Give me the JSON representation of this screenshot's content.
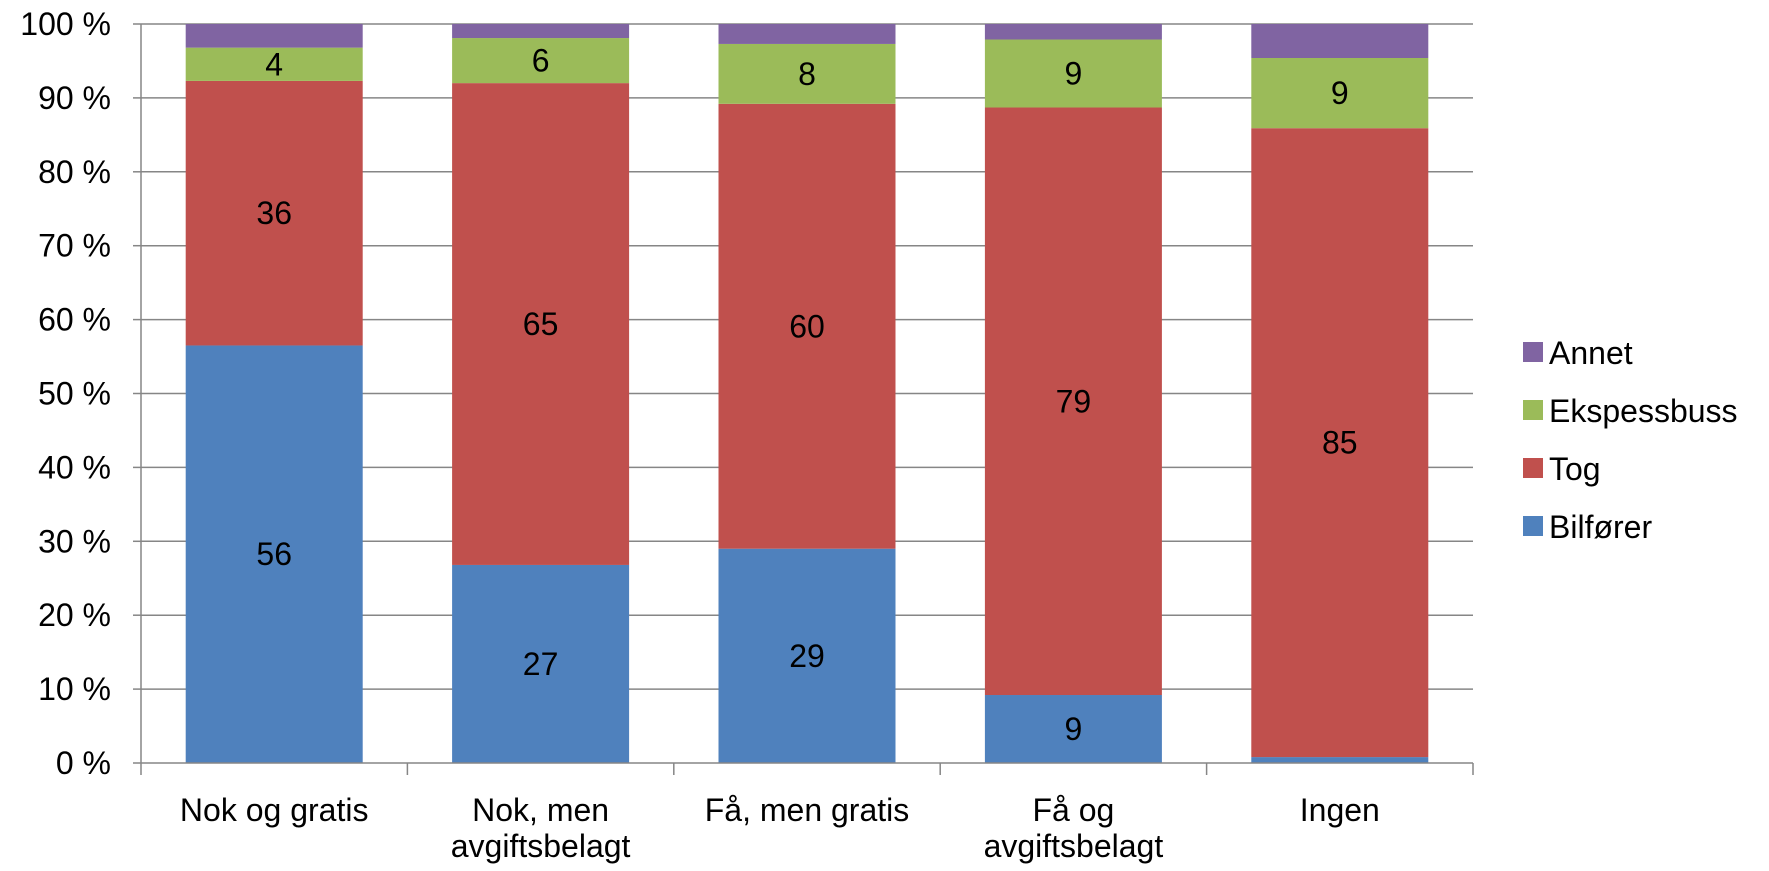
{
  "chart_data": {
    "type": "bar",
    "stacked": true,
    "percent_stacked": true,
    "categories": [
      [
        "Nok og gratis"
      ],
      [
        "Nok, men",
        "avgiftsbelagt"
      ],
      [
        "Få, men gratis"
      ],
      [
        "Få og",
        "avgiftsbelagt"
      ],
      [
        "Ingen"
      ]
    ],
    "series": [
      {
        "name": "Bilfører",
        "color": "#4F81BD",
        "values": [
          56.5,
          26.8,
          29.0,
          9.2,
          0.8
        ],
        "labels": [
          "56",
          "27",
          "29",
          "9",
          ""
        ]
      },
      {
        "name": "Tog",
        "color": "#C0504D",
        "values": [
          35.8,
          65.2,
          60.2,
          79.5,
          85.1
        ],
        "labels": [
          "36",
          "65",
          "60",
          "79",
          "85"
        ]
      },
      {
        "name": "Ekspessbuss",
        "color": "#9BBB59",
        "values": [
          4.5,
          6.1,
          8.1,
          9.2,
          9.5
        ],
        "labels": [
          "4",
          "6",
          "8",
          "9",
          "9"
        ]
      },
      {
        "name": "Annet",
        "color": "#8064A2",
        "values": [
          3.2,
          1.9,
          2.7,
          2.1,
          4.6
        ],
        "labels": [
          "",
          "",
          "",
          "",
          ""
        ]
      }
    ],
    "ylim": [
      0,
      100
    ],
    "yticks": [
      "0 %",
      "10 %",
      "20 %",
      "30 %",
      "40 %",
      "50 %",
      "60 %",
      "70 %",
      "80 %",
      "90 %",
      "100 %"
    ],
    "grid": true,
    "gridline_color": "#868686",
    "legend_position": "right",
    "legend_order": [
      "Annet",
      "Ekspessbuss",
      "Tog",
      "Bilfører"
    ],
    "title": "",
    "xlabel": "",
    "ylabel": ""
  }
}
